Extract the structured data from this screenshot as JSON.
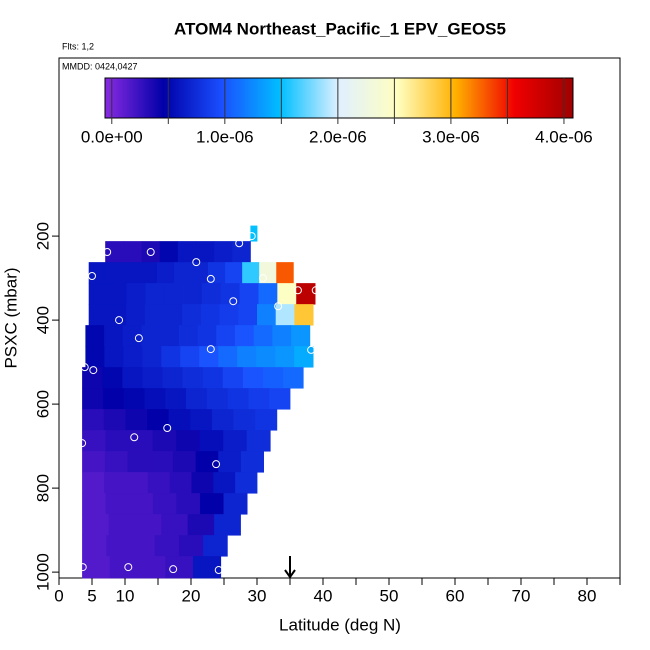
{
  "chart_data": {
    "type": "curtain",
    "title": "ATOM4 Northeast_Pacific_1 EPV_GEOS5",
    "flights": "Flts: 1,2",
    "dates": "MMDD: 0424,0427",
    "x_label": "Latitude (deg N)",
    "y_label": "PSXC (mbar)",
    "xlim": [
      0,
      85
    ],
    "ylim": [
      1014,
      -224
    ],
    "xticks": [
      0,
      5,
      10,
      20,
      30,
      40,
      50,
      60,
      70,
      80
    ],
    "xminorticks": [
      15,
      25,
      35,
      45,
      55,
      65,
      75,
      85
    ],
    "yticks": [
      200,
      400,
      600,
      800,
      1000
    ],
    "clim": [
      -6e-08,
      4.08e-06
    ],
    "colorbar_ticks": [
      {
        "value": 0,
        "label": "0.0e+00"
      },
      {
        "value": 1e-06,
        "label": "1.0e-06"
      },
      {
        "value": 2e-06,
        "label": "2.0e-06"
      },
      {
        "value": 3e-06,
        "label": "3.0e-06"
      },
      {
        "value": 4e-06,
        "label": "4.0e-06"
      }
    ],
    "colormap": [
      "#8a2be2",
      "#0000a8",
      "#1a4fff",
      "#00bfff",
      "#e0f0ff",
      "#ffffc0",
      "#ffb000",
      "#f00000",
      "#a00000"
    ],
    "rows": [
      {
        "pressure": [
          175,
          212
        ],
        "lat": [
          29,
          30
        ],
        "values": [
          1.5e-06
        ]
      },
      {
        "pressure": [
          212,
          262
        ],
        "lat": [
          7,
          29
        ],
        "values": [
          3e-07,
          3e-07,
          3.5e-07,
          5e-07,
          6e-07,
          6e-07,
          6.5e-07,
          7e-07
        ]
      },
      {
        "pressure": [
          262,
          312
        ],
        "lat": [
          4.5,
          35.5
        ],
        "values": [
          6e-07,
          6e-07,
          6e-07,
          6e-07,
          6.5e-07,
          7e-07,
          7e-07,
          8e-07,
          9e-07,
          1.6e-06,
          2.3e-06,
          3.3e-06
        ]
      },
      {
        "pressure": [
          312,
          362
        ],
        "lat": [
          4.5,
          38.8
        ],
        "values": [
          6e-07,
          6e-07,
          6.5e-07,
          7e-07,
          7e-07,
          7e-07,
          7.5e-07,
          8e-07,
          9e-07,
          1.1e-06,
          2.5e-06,
          3.9e-06
        ]
      },
      {
        "pressure": [
          362,
          412
        ],
        "lat": [
          4.5,
          38.5
        ],
        "values": [
          6e-07,
          6e-07,
          6.5e-07,
          7e-07,
          7e-07,
          7.5e-07,
          8e-07,
          8.5e-07,
          9e-07,
          1.2e-06,
          1.9e-06,
          2.9e-06
        ]
      },
      {
        "pressure": [
          412,
          462
        ],
        "lat": [
          4,
          38
        ],
        "values": [
          5e-07,
          6e-07,
          6.5e-07,
          7e-07,
          7e-07,
          7.5e-07,
          8e-07,
          9e-07,
          1e-06,
          1.1e-06,
          1.2e-06,
          1.3e-06
        ]
      },
      {
        "pressure": [
          462,
          512
        ],
        "lat": [
          4,
          38.5
        ],
        "values": [
          5e-07,
          6e-07,
          6.5e-07,
          7e-07,
          8e-07,
          9e-07,
          1e-06,
          1.1e-06,
          1.2e-06,
          1.25e-06,
          1.3e-06,
          1.4e-06
        ]
      },
      {
        "pressure": [
          512,
          562
        ],
        "lat": [
          3.5,
          37
        ],
        "values": [
          4e-07,
          5e-07,
          6e-07,
          6.5e-07,
          7e-07,
          7.5e-07,
          8e-07,
          9e-07,
          1e-06,
          1.05e-06,
          1.1e-06
        ]
      },
      {
        "pressure": [
          562,
          612
        ],
        "lat": [
          3.5,
          35
        ],
        "values": [
          4e-07,
          4.5e-07,
          5e-07,
          5.5e-07,
          6e-07,
          7e-07,
          7.5e-07,
          8e-07,
          8.5e-07,
          9e-07
        ]
      },
      {
        "pressure": [
          612,
          662
        ],
        "lat": [
          3.5,
          33
        ],
        "values": [
          3e-07,
          3.5e-07,
          4e-07,
          4.5e-07,
          5.5e-07,
          6e-07,
          7e-07,
          7.5e-07,
          8e-07
        ]
      },
      {
        "pressure": [
          662,
          712
        ],
        "lat": [
          3.5,
          32
        ],
        "values": [
          2.5e-07,
          3e-07,
          3e-07,
          3.5e-07,
          4e-07,
          5.5e-07,
          6.5e-07,
          7.5e-07
        ]
      },
      {
        "pressure": [
          712,
          762
        ],
        "lat": [
          3.5,
          31
        ],
        "values": [
          2e-07,
          2.5e-07,
          3e-07,
          3e-07,
          3.5e-07,
          4.5e-07,
          6.5e-07,
          7.5e-07
        ]
      },
      {
        "pressure": [
          762,
          812
        ],
        "lat": [
          3.5,
          30
        ],
        "values": [
          1.5e-07,
          2e-07,
          2e-07,
          2.5e-07,
          3e-07,
          4e-07,
          6e-07,
          7.5e-07
        ]
      },
      {
        "pressure": [
          812,
          862
        ],
        "lat": [
          3.5,
          28.5
        ],
        "values": [
          1.5e-07,
          2e-07,
          2e-07,
          2.5e-07,
          3e-07,
          4.5e-07,
          7e-07
        ]
      },
      {
        "pressure": [
          862,
          912
        ],
        "lat": [
          3.5,
          27.5
        ],
        "values": [
          1.5e-07,
          2e-07,
          2e-07,
          2.5e-07,
          3.5e-07,
          7e-07
        ]
      },
      {
        "pressure": [
          912,
          962
        ],
        "lat": [
          3.5,
          25.5
        ],
        "values": [
          1.5e-07,
          2e-07,
          2e-07,
          2.5e-07,
          3e-07,
          7e-07
        ]
      },
      {
        "pressure": [
          962,
          1014
        ],
        "lat": [
          3.5,
          24.5
        ],
        "values": [
          1.5e-07,
          2e-07,
          2e-07,
          2.5e-07,
          6e-07
        ]
      }
    ],
    "flight_points": {
      "lat": [
        7.3,
        13.9,
        20.8,
        27.3,
        29.2,
        5,
        23,
        30.9,
        36.2,
        38.9,
        26.4,
        33.2,
        9.1,
        12.1,
        23,
        38.2,
        3.9,
        5.2,
        3.5,
        11.4,
        16.4,
        23.8,
        3.6,
        10.5,
        17.3,
        24.2
      ],
      "pressure": [
        238,
        238,
        262,
        217,
        200,
        295,
        302,
        300,
        329,
        329,
        355,
        367,
        400,
        443,
        469,
        471,
        512,
        519,
        693,
        679,
        657,
        743,
        988,
        988,
        993,
        995
      ]
    },
    "arrow_lat": 35
  }
}
